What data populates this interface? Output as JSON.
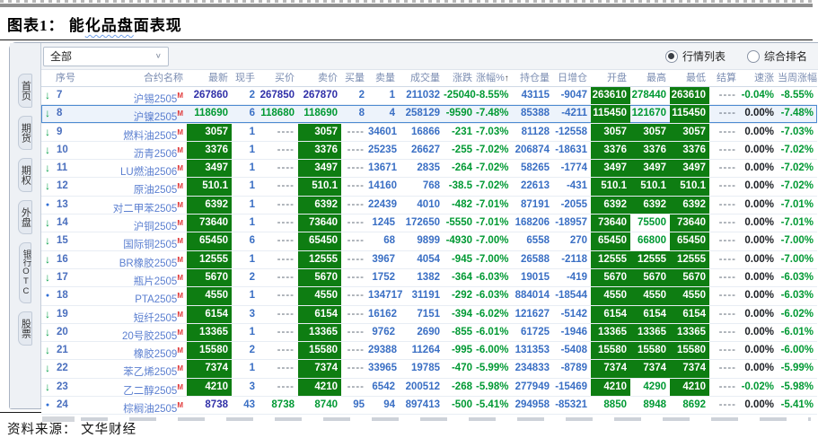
{
  "page": {
    "title_prefix": "图表1：",
    "title_plain": " 能",
    "title_wavy": "化品盘",
    "title_rest": "面表现",
    "source": "资料来源： 文华财经"
  },
  "sidebar": {
    "tabs": [
      "首页",
      "期货",
      "期权",
      "外盘",
      "银行OTC",
      "股票"
    ]
  },
  "toolbar": {
    "filter_value": "全部",
    "chevron": "∨",
    "view_options": [
      {
        "label": "行情列表",
        "selected": true
      },
      {
        "label": "综合排名",
        "selected": false
      }
    ]
  },
  "table": {
    "headers": [
      "序号",
      "合约名称",
      "最新",
      "现手",
      "买价",
      "卖价",
      "买量",
      "卖量",
      "成交量",
      "涨跌",
      "涨幅%",
      "持仓量",
      "日增仓",
      "开盘",
      "最高",
      "最低",
      "结算",
      "速涨",
      "当周涨幅"
    ],
    "sort_field": "pct",
    "sort_indicator": "↑",
    "rows": [
      {
        "seq": "7",
        "icon": "down",
        "name": "沪锡2505",
        "flag": "M",
        "last": "267860",
        "cur": "2",
        "bid": "267850",
        "ask": "267870",
        "bvol": "2",
        "svol": "1",
        "vol": "211032",
        "chg": "-25040",
        "pct": "-8.55%",
        "oi": "43115",
        "oichg": "-9047",
        "open": "263610",
        "high": "278440",
        "low": "263610",
        "settle": "----",
        "fast": "-0.04%",
        "week": "-8.55%",
        "selected": false,
        "fmt": {
          "last": "navy",
          "bid": "navy",
          "ask": "navy",
          "open": "bg",
          "high": "green",
          "low": "bg",
          "fast": "green"
        }
      },
      {
        "seq": "8",
        "icon": "down",
        "name": "沪镍2505",
        "flag": "M",
        "last": "118690",
        "cur": "6",
        "bid": "118680",
        "ask": "118690",
        "bvol": "8",
        "svol": "4",
        "vol": "258129",
        "chg": "-9590",
        "pct": "-7.48%",
        "oi": "85388",
        "oichg": "-4211",
        "open": "115450",
        "high": "121670",
        "low": "115450",
        "settle": "----",
        "fast": "0.00%",
        "week": "-7.48%",
        "selected": true,
        "fmt": {
          "last": "green",
          "bid": "green",
          "ask": "green",
          "open": "bg",
          "high": "green",
          "low": "bg"
        }
      },
      {
        "seq": "9",
        "icon": "down",
        "name": "燃料油2505",
        "flag": "M",
        "last": "3057",
        "cur": "1",
        "bid": "----",
        "ask": "3057",
        "bvol": "----",
        "svol": "34601",
        "vol": "16866",
        "chg": "-231",
        "pct": "-7.03%",
        "oi": "81128",
        "oichg": "-12558",
        "open": "3057",
        "high": "3057",
        "low": "3057",
        "settle": "----",
        "fast": "0.00%",
        "week": "-7.03%",
        "selected": false,
        "fmt": {
          "last": "bg",
          "bid": "dash",
          "ask": "bg",
          "bvol": "dash",
          "open": "bg",
          "high": "bg",
          "low": "bg"
        }
      },
      {
        "seq": "10",
        "icon": "down",
        "name": "沥青2506",
        "flag": "M",
        "last": "3376",
        "cur": "1",
        "bid": "----",
        "ask": "3376",
        "bvol": "----",
        "svol": "25235",
        "vol": "26627",
        "chg": "-255",
        "pct": "-7.02%",
        "oi": "206874",
        "oichg": "-18631",
        "open": "3376",
        "high": "3376",
        "low": "3376",
        "settle": "----",
        "fast": "0.00%",
        "week": "-7.02%",
        "selected": false,
        "fmt": {
          "last": "bg",
          "bid": "dash",
          "ask": "bg",
          "bvol": "dash",
          "open": "bg",
          "high": "bg",
          "low": "bg"
        }
      },
      {
        "seq": "11",
        "icon": "down",
        "name": "LU燃油2506",
        "flag": "M",
        "last": "3497",
        "cur": "1",
        "bid": "----",
        "ask": "3497",
        "bvol": "----",
        "svol": "13671",
        "vol": "2835",
        "chg": "-264",
        "pct": "-7.02%",
        "oi": "58265",
        "oichg": "-1774",
        "open": "3497",
        "high": "3497",
        "low": "3497",
        "settle": "----",
        "fast": "0.00%",
        "week": "-7.02%",
        "selected": false,
        "fmt": {
          "last": "bg",
          "bid": "dash",
          "ask": "bg",
          "bvol": "dash",
          "open": "bg",
          "high": "bg",
          "low": "bg"
        }
      },
      {
        "seq": "12",
        "icon": "down",
        "name": "原油2505",
        "flag": "M",
        "last": "510.1",
        "cur": "1",
        "bid": "----",
        "ask": "510.1",
        "bvol": "----",
        "svol": "14160",
        "vol": "768",
        "chg": "-38.5",
        "pct": "-7.02%",
        "oi": "22613",
        "oichg": "-431",
        "open": "510.1",
        "high": "510.1",
        "low": "510.1",
        "settle": "----",
        "fast": "0.00%",
        "week": "-7.02%",
        "selected": false,
        "fmt": {
          "last": "bg",
          "bid": "dash",
          "ask": "bg",
          "bvol": "dash",
          "open": "bg",
          "high": "bg",
          "low": "bg"
        }
      },
      {
        "seq": "13",
        "icon": "dot",
        "name": "对二甲苯2505",
        "flag": "M",
        "last": "6392",
        "cur": "1",
        "bid": "----",
        "ask": "6392",
        "bvol": "----",
        "svol": "22439",
        "vol": "4010",
        "chg": "-482",
        "pct": "-7.01%",
        "oi": "87191",
        "oichg": "-2055",
        "open": "6392",
        "high": "6392",
        "low": "6392",
        "settle": "----",
        "fast": "0.00%",
        "week": "-7.01%",
        "selected": false,
        "fmt": {
          "last": "bg",
          "bid": "dash",
          "ask": "bg",
          "bvol": "dash",
          "open": "bg",
          "high": "bg",
          "low": "bg"
        }
      },
      {
        "seq": "14",
        "icon": "down",
        "name": "沪铜2505",
        "flag": "M",
        "last": "73640",
        "cur": "1",
        "bid": "----",
        "ask": "73640",
        "bvol": "----",
        "svol": "1245",
        "vol": "172650",
        "chg": "-5550",
        "pct": "-7.01%",
        "oi": "168206",
        "oichg": "-18957",
        "open": "73640",
        "high": "75500",
        "low": "73640",
        "settle": "----",
        "fast": "0.00%",
        "week": "-7.01%",
        "selected": false,
        "fmt": {
          "last": "bg",
          "bid": "dash",
          "ask": "bg",
          "bvol": "dash",
          "open": "bg",
          "high": "green",
          "low": "bg"
        }
      },
      {
        "seq": "15",
        "icon": "down",
        "name": "国际铜2505",
        "flag": "M",
        "last": "65450",
        "cur": "6",
        "bid": "----",
        "ask": "65450",
        "bvol": "----",
        "svol": "68",
        "vol": "9899",
        "chg": "-4930",
        "pct": "-7.00%",
        "oi": "6558",
        "oichg": "270",
        "open": "65450",
        "high": "66800",
        "low": "65450",
        "settle": "----",
        "fast": "0.00%",
        "week": "-7.00%",
        "selected": false,
        "fmt": {
          "last": "bg",
          "bid": "dash",
          "ask": "bg",
          "bvol": "dash",
          "open": "bg",
          "high": "green",
          "low": "bg"
        }
      },
      {
        "seq": "16",
        "icon": "down",
        "name": "BR橡胶2505",
        "flag": "M",
        "last": "12555",
        "cur": "1",
        "bid": "----",
        "ask": "12555",
        "bvol": "----",
        "svol": "3967",
        "vol": "4054",
        "chg": "-945",
        "pct": "-7.00%",
        "oi": "26588",
        "oichg": "-2118",
        "open": "12555",
        "high": "12555",
        "low": "12555",
        "settle": "----",
        "fast": "0.00%",
        "week": "-7.00%",
        "selected": false,
        "fmt": {
          "last": "bg",
          "bid": "dash",
          "ask": "bg",
          "bvol": "dash",
          "open": "bg",
          "high": "bg",
          "low": "bg"
        }
      },
      {
        "seq": "17",
        "icon": "down",
        "name": "瓶片2505",
        "flag": "M",
        "last": "5670",
        "cur": "2",
        "bid": "----",
        "ask": "5670",
        "bvol": "----",
        "svol": "1752",
        "vol": "1382",
        "chg": "-364",
        "pct": "-6.03%",
        "oi": "19015",
        "oichg": "-419",
        "open": "5670",
        "high": "5670",
        "low": "5670",
        "settle": "----",
        "fast": "0.00%",
        "week": "-6.03%",
        "selected": false,
        "fmt": {
          "last": "bg",
          "bid": "dash",
          "ask": "bg",
          "bvol": "dash",
          "open": "bg",
          "high": "bg",
          "low": "bg"
        }
      },
      {
        "seq": "18",
        "icon": "dot",
        "name": "PTA2505",
        "flag": "M",
        "last": "4550",
        "cur": "1",
        "bid": "----",
        "ask": "4550",
        "bvol": "----",
        "svol": "134717",
        "vol": "31191",
        "chg": "-292",
        "pct": "-6.03%",
        "oi": "884014",
        "oichg": "-18544",
        "open": "4550",
        "high": "4550",
        "low": "4550",
        "settle": "----",
        "fast": "0.00%",
        "week": "-6.03%",
        "selected": false,
        "fmt": {
          "last": "bg",
          "bid": "dash",
          "ask": "bg",
          "bvol": "dash",
          "open": "bg",
          "high": "bg",
          "low": "bg"
        }
      },
      {
        "seq": "19",
        "icon": "down",
        "name": "短纤2505",
        "flag": "M",
        "last": "6154",
        "cur": "3",
        "bid": "----",
        "ask": "6154",
        "bvol": "----",
        "svol": "16162",
        "vol": "7151",
        "chg": "-394",
        "pct": "-6.02%",
        "oi": "121627",
        "oichg": "-5142",
        "open": "6154",
        "high": "6154",
        "low": "6154",
        "settle": "----",
        "fast": "0.00%",
        "week": "-6.02%",
        "selected": false,
        "fmt": {
          "last": "bg",
          "bid": "dash",
          "ask": "bg",
          "bvol": "dash",
          "open": "bg",
          "high": "bg",
          "low": "bg"
        }
      },
      {
        "seq": "20",
        "icon": "down",
        "name": "20号胶2505",
        "flag": "M",
        "last": "13365",
        "cur": "1",
        "bid": "----",
        "ask": "13365",
        "bvol": "----",
        "svol": "9762",
        "vol": "2690",
        "chg": "-855",
        "pct": "-6.01%",
        "oi": "61725",
        "oichg": "-1946",
        "open": "13365",
        "high": "13365",
        "low": "13365",
        "settle": "----",
        "fast": "0.00%",
        "week": "-6.01%",
        "selected": false,
        "fmt": {
          "last": "bg",
          "bid": "dash",
          "ask": "bg",
          "bvol": "dash",
          "open": "bg",
          "high": "bg",
          "low": "bg"
        }
      },
      {
        "seq": "21",
        "icon": "down",
        "name": "橡胶2509",
        "flag": "M",
        "last": "15580",
        "cur": "2",
        "bid": "----",
        "ask": "15580",
        "bvol": "----",
        "svol": "29388",
        "vol": "11264",
        "chg": "-995",
        "pct": "-6.00%",
        "oi": "131353",
        "oichg": "-5408",
        "open": "15580",
        "high": "15580",
        "low": "15580",
        "settle": "----",
        "fast": "0.00%",
        "week": "-6.00%",
        "selected": false,
        "fmt": {
          "last": "bg",
          "bid": "dash",
          "ask": "bg",
          "bvol": "dash",
          "open": "bg",
          "high": "bg",
          "low": "bg"
        }
      },
      {
        "seq": "22",
        "icon": "down",
        "name": "苯乙烯2505",
        "flag": "M",
        "last": "7374",
        "cur": "1",
        "bid": "----",
        "ask": "7374",
        "bvol": "----",
        "svol": "33965",
        "vol": "19785",
        "chg": "-470",
        "pct": "-5.99%",
        "oi": "234833",
        "oichg": "-8789",
        "open": "7374",
        "high": "7374",
        "low": "7374",
        "settle": "----",
        "fast": "0.00%",
        "week": "-5.99%",
        "selected": false,
        "fmt": {
          "last": "bg",
          "bid": "dash",
          "ask": "bg",
          "bvol": "dash",
          "open": "bg",
          "high": "bg",
          "low": "bg"
        }
      },
      {
        "seq": "23",
        "icon": "down",
        "name": "乙二醇2505",
        "flag": "M",
        "last": "4210",
        "cur": "3",
        "bid": "----",
        "ask": "4210",
        "bvol": "----",
        "svol": "6542",
        "vol": "200512",
        "chg": "-268",
        "pct": "-5.98%",
        "oi": "277949",
        "oichg": "-15469",
        "open": "4210",
        "high": "4290",
        "low": "4210",
        "settle": "----",
        "fast": "-0.02%",
        "week": "-5.98%",
        "selected": false,
        "fmt": {
          "last": "bg",
          "bid": "dash",
          "ask": "bg",
          "bvol": "dash",
          "open": "bg",
          "high": "green",
          "low": "bg",
          "fast": "green"
        }
      },
      {
        "seq": "24",
        "icon": "dot",
        "name": "棕榈油2505",
        "flag": "M",
        "last": "8738",
        "cur": "43",
        "bid": "8738",
        "ask": "8740",
        "bvol": "95",
        "svol": "94",
        "vol": "897413",
        "chg": "-500",
        "pct": "-5.41%",
        "oi": "294958",
        "oichg": "-85321",
        "open": "8850",
        "high": "8948",
        "low": "8692",
        "settle": "----",
        "fast": "0.00%",
        "week": "-5.41%",
        "selected": false,
        "fmt": {
          "last": "navy",
          "bid": "green",
          "ask": "green",
          "open": "green",
          "high": "green",
          "low": "green"
        }
      }
    ]
  }
}
